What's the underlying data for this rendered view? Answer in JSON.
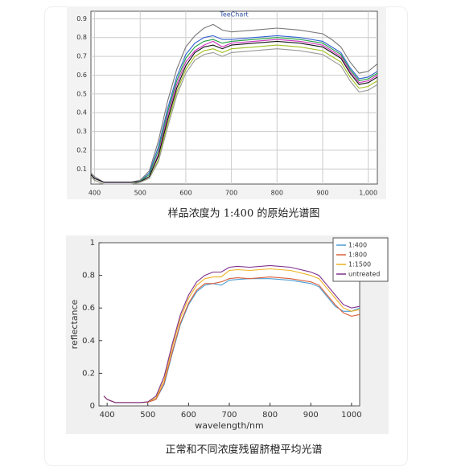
{
  "chart_data": [
    {
      "type": "line",
      "title": "TeeChart",
      "caption": "样品浓度为 1:400 的原始光谱图",
      "grid": true,
      "x": [
        392,
        400,
        420,
        450,
        480,
        500,
        520,
        540,
        560,
        580,
        600,
        620,
        640,
        660,
        680,
        700,
        750,
        800,
        850,
        900,
        920,
        940,
        960,
        980,
        1000,
        1020
      ],
      "xlim": [
        392,
        1020
      ],
      "xticks": [
        400,
        500,
        600,
        700,
        800,
        900,
        {
          "value": 1000,
          "label": "1,000"
        }
      ],
      "ylim": [
        0.02,
        0.94
      ],
      "yticks": [
        0.1,
        0.2,
        0.3,
        0.4,
        0.5,
        0.6,
        0.7,
        0.8,
        0.9
      ],
      "series": [
        {
          "color": "#777777",
          "values": [
            0.08,
            0.06,
            0.03,
            0.03,
            0.03,
            0.04,
            0.09,
            0.25,
            0.46,
            0.63,
            0.75,
            0.81,
            0.85,
            0.87,
            0.84,
            0.83,
            0.84,
            0.85,
            0.84,
            0.82,
            0.79,
            0.75,
            0.67,
            0.61,
            0.62,
            0.66
          ]
        },
        {
          "color": "#3060d0",
          "values": [
            0.07,
            0.05,
            0.03,
            0.03,
            0.03,
            0.035,
            0.08,
            0.22,
            0.42,
            0.59,
            0.71,
            0.77,
            0.8,
            0.81,
            0.79,
            0.79,
            0.8,
            0.81,
            0.8,
            0.78,
            0.75,
            0.72,
            0.64,
            0.58,
            0.59,
            0.62
          ]
        },
        {
          "color": "#20a040",
          "values": [
            0.07,
            0.05,
            0.03,
            0.03,
            0.03,
            0.035,
            0.07,
            0.2,
            0.4,
            0.57,
            0.69,
            0.75,
            0.78,
            0.79,
            0.77,
            0.78,
            0.79,
            0.8,
            0.79,
            0.77,
            0.74,
            0.71,
            0.63,
            0.57,
            0.58,
            0.61
          ]
        },
        {
          "color": "#d030c0",
          "values": [
            0.07,
            0.05,
            0.03,
            0.03,
            0.03,
            0.033,
            0.06,
            0.18,
            0.38,
            0.55,
            0.67,
            0.73,
            0.76,
            0.78,
            0.75,
            0.77,
            0.78,
            0.79,
            0.78,
            0.76,
            0.73,
            0.7,
            0.62,
            0.56,
            0.57,
            0.6
          ]
        },
        {
          "color": "#111111",
          "values": [
            0.07,
            0.05,
            0.03,
            0.03,
            0.03,
            0.032,
            0.06,
            0.17,
            0.36,
            0.53,
            0.65,
            0.72,
            0.75,
            0.76,
            0.74,
            0.76,
            0.77,
            0.78,
            0.77,
            0.75,
            0.72,
            0.69,
            0.61,
            0.55,
            0.56,
            0.59
          ]
        },
        {
          "color": "#a0c020",
          "values": [
            0.06,
            0.04,
            0.02,
            0.02,
            0.02,
            0.03,
            0.05,
            0.15,
            0.34,
            0.51,
            0.63,
            0.7,
            0.73,
            0.74,
            0.72,
            0.74,
            0.75,
            0.76,
            0.75,
            0.73,
            0.7,
            0.67,
            0.59,
            0.53,
            0.54,
            0.57
          ]
        },
        {
          "color": "#999999",
          "values": [
            0.06,
            0.04,
            0.02,
            0.02,
            0.02,
            0.03,
            0.05,
            0.14,
            0.32,
            0.49,
            0.61,
            0.68,
            0.71,
            0.72,
            0.7,
            0.72,
            0.73,
            0.74,
            0.73,
            0.71,
            0.68,
            0.65,
            0.57,
            0.51,
            0.52,
            0.55
          ]
        }
      ]
    },
    {
      "type": "line",
      "caption": "正常和不同浓度残留脐橙平均光谱",
      "xlabel": "wavelength/nm",
      "ylabel": "reflectance",
      "grid": false,
      "legend": "upper right",
      "x": [
        392,
        400,
        420,
        450,
        480,
        500,
        520,
        540,
        560,
        580,
        600,
        620,
        640,
        660,
        680,
        700,
        720,
        750,
        800,
        850,
        900,
        920,
        940,
        960,
        980,
        1000,
        1020
      ],
      "xlim": [
        380,
        1020
      ],
      "xticks": [
        400,
        500,
        600,
        700,
        800,
        900,
        1000
      ],
      "ylim": [
        0,
        1
      ],
      "yticks": [
        0,
        0.2,
        0.4,
        0.6,
        0.8,
        1
      ],
      "series": [
        {
          "name": "1:400",
          "color": "#4a9ed4",
          "values": [
            0.06,
            0.04,
            0.02,
            0.02,
            0.02,
            0.022,
            0.04,
            0.13,
            0.32,
            0.5,
            0.62,
            0.7,
            0.74,
            0.75,
            0.74,
            0.77,
            0.775,
            0.78,
            0.78,
            0.77,
            0.75,
            0.73,
            0.67,
            0.61,
            0.58,
            0.58,
            0.6
          ]
        },
        {
          "name": "1:800",
          "color": "#d95f3b",
          "values": [
            0.06,
            0.04,
            0.02,
            0.02,
            0.02,
            0.022,
            0.04,
            0.14,
            0.33,
            0.51,
            0.63,
            0.71,
            0.75,
            0.75,
            0.76,
            0.78,
            0.785,
            0.78,
            0.79,
            0.78,
            0.76,
            0.74,
            0.68,
            0.62,
            0.57,
            0.55,
            0.56
          ]
        },
        {
          "name": "1:1500",
          "color": "#edb120",
          "values": [
            0.06,
            0.04,
            0.02,
            0.02,
            0.02,
            0.024,
            0.05,
            0.16,
            0.36,
            0.54,
            0.66,
            0.74,
            0.78,
            0.79,
            0.79,
            0.83,
            0.835,
            0.83,
            0.84,
            0.83,
            0.8,
            0.78,
            0.72,
            0.66,
            0.6,
            0.58,
            0.59
          ]
        },
        {
          "name": "untreated",
          "color": "#7e2f8e",
          "values": [
            0.06,
            0.04,
            0.02,
            0.02,
            0.02,
            0.025,
            0.06,
            0.18,
            0.38,
            0.56,
            0.68,
            0.76,
            0.8,
            0.82,
            0.82,
            0.85,
            0.855,
            0.85,
            0.86,
            0.85,
            0.82,
            0.8,
            0.74,
            0.68,
            0.62,
            0.6,
            0.61
          ]
        }
      ]
    }
  ]
}
